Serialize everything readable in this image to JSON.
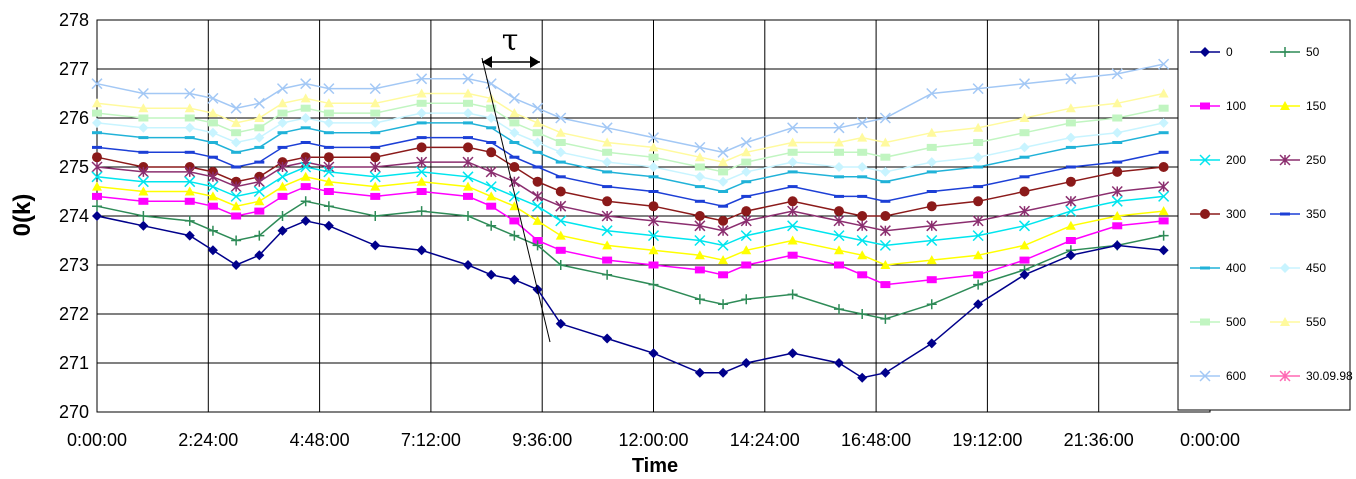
{
  "chart_data": {
    "type": "line",
    "title": "",
    "xlabel": "Time",
    "ylabel": "0(k)",
    "x_ticks": [
      "0:00:00",
      "2:24:00",
      "4:48:00",
      "7:12:00",
      "9:36:00",
      "12:00:00",
      "14:24:00",
      "16:48:00",
      "19:12:00",
      "21:36:00",
      "0:00:00"
    ],
    "xlim_hours": [
      0,
      24
    ],
    "ylim": [
      270,
      278
    ],
    "y_ticks": [
      270,
      271,
      272,
      273,
      274,
      275,
      276,
      277,
      278
    ],
    "grid": true,
    "legend_position": "right",
    "annotation": "τ",
    "sample_hours": [
      0,
      1,
      2,
      2.5,
      3,
      3.5,
      4,
      4.5,
      5,
      6,
      7,
      8,
      8.5,
      9,
      9.5,
      10,
      11,
      12,
      13,
      13.5,
      14,
      15,
      16,
      16.5,
      17,
      18,
      19,
      20,
      21,
      22,
      23
    ],
    "series": [
      {
        "name": "0",
        "color": "#00008b",
        "marker": "diamond",
        "values": [
          274.0,
          273.8,
          273.6,
          273.3,
          273.0,
          273.2,
          273.7,
          273.9,
          273.8,
          273.4,
          273.3,
          273.0,
          272.8,
          272.7,
          272.5,
          271.8,
          271.5,
          271.2,
          270.8,
          270.8,
          271.0,
          271.2,
          271.0,
          270.7,
          270.8,
          271.4,
          272.2,
          272.8,
          273.2,
          273.4,
          273.3
        ]
      },
      {
        "name": "50",
        "color": "#2e8b57",
        "marker": "plus",
        "values": [
          274.2,
          274.0,
          273.9,
          273.7,
          273.5,
          273.6,
          274.0,
          274.3,
          274.2,
          274.0,
          274.1,
          274.0,
          273.8,
          273.6,
          273.4,
          273.0,
          272.8,
          272.6,
          272.3,
          272.2,
          272.3,
          272.4,
          272.1,
          272.0,
          271.9,
          272.2,
          272.6,
          272.9,
          273.3,
          273.4,
          273.6
        ]
      },
      {
        "name": "100",
        "color": "#ff00ff",
        "marker": "square",
        "values": [
          274.4,
          274.3,
          274.3,
          274.2,
          274.0,
          274.1,
          274.4,
          274.6,
          274.5,
          274.4,
          274.5,
          274.4,
          274.2,
          273.9,
          273.5,
          273.3,
          273.1,
          273.0,
          272.9,
          272.8,
          273.0,
          273.2,
          273.0,
          272.8,
          272.6,
          272.7,
          272.8,
          273.1,
          273.5,
          273.8,
          273.9
        ]
      },
      {
        "name": "150",
        "color": "#ffff00",
        "marker": "triangle",
        "values": [
          274.6,
          274.5,
          274.5,
          274.4,
          274.2,
          274.3,
          274.6,
          274.8,
          274.7,
          274.6,
          274.7,
          274.6,
          274.4,
          274.2,
          273.9,
          273.6,
          273.4,
          273.3,
          273.2,
          273.1,
          273.3,
          273.5,
          273.3,
          273.2,
          273.0,
          273.1,
          273.2,
          273.4,
          273.8,
          274.0,
          274.1
        ]
      },
      {
        "name": "200",
        "color": "#00e5ee",
        "marker": "x",
        "values": [
          274.8,
          274.7,
          274.7,
          274.6,
          274.4,
          274.5,
          274.8,
          275.0,
          274.9,
          274.8,
          274.9,
          274.8,
          274.6,
          274.4,
          274.2,
          273.9,
          273.7,
          273.6,
          273.5,
          273.4,
          273.6,
          273.8,
          273.6,
          273.5,
          273.4,
          273.5,
          273.6,
          273.8,
          274.1,
          274.3,
          274.4
        ]
      },
      {
        "name": "250",
        "color": "#8b2e6f",
        "marker": "star",
        "values": [
          275.0,
          274.9,
          274.9,
          274.8,
          274.6,
          274.7,
          275.0,
          275.1,
          275.0,
          275.0,
          275.1,
          275.1,
          274.9,
          274.7,
          274.4,
          274.2,
          274.0,
          273.9,
          273.8,
          273.7,
          273.9,
          274.1,
          273.9,
          273.8,
          273.7,
          273.8,
          273.9,
          274.1,
          274.3,
          274.5,
          274.6
        ]
      },
      {
        "name": "300",
        "color": "#8b1a1a",
        "marker": "circle",
        "values": [
          275.2,
          275.0,
          275.0,
          274.9,
          274.7,
          274.8,
          275.1,
          275.2,
          275.2,
          275.2,
          275.4,
          275.4,
          275.3,
          275.0,
          274.7,
          274.5,
          274.3,
          274.2,
          274.0,
          273.9,
          274.1,
          274.3,
          274.1,
          274.0,
          274.0,
          274.2,
          274.3,
          274.5,
          274.7,
          274.9,
          275.0
        ]
      },
      {
        "name": "350",
        "color": "#1c3fd6",
        "marker": "dash",
        "values": [
          275.4,
          275.3,
          275.3,
          275.2,
          275.0,
          275.1,
          275.4,
          275.5,
          275.4,
          275.4,
          275.6,
          275.6,
          275.5,
          275.2,
          275.0,
          274.8,
          274.6,
          274.5,
          274.3,
          274.2,
          274.4,
          274.6,
          274.4,
          274.4,
          274.3,
          274.5,
          274.6,
          274.8,
          275.0,
          275.1,
          275.3
        ]
      },
      {
        "name": "400",
        "color": "#20b2d8",
        "marker": "dash",
        "values": [
          275.7,
          275.6,
          275.6,
          275.5,
          275.3,
          275.4,
          275.7,
          275.8,
          275.7,
          275.7,
          275.9,
          275.9,
          275.8,
          275.5,
          275.3,
          275.1,
          274.9,
          274.8,
          274.6,
          274.5,
          274.7,
          274.9,
          274.8,
          274.8,
          274.7,
          274.9,
          275.0,
          275.2,
          275.4,
          275.5,
          275.7
        ]
      },
      {
        "name": "450",
        "color": "#c8f4ff",
        "marker": "diamond",
        "values": [
          275.9,
          275.8,
          275.8,
          275.7,
          275.5,
          275.6,
          275.9,
          276.0,
          275.9,
          275.9,
          276.1,
          276.1,
          276.0,
          275.7,
          275.5,
          275.3,
          275.1,
          275.0,
          274.8,
          274.7,
          274.9,
          275.1,
          275.0,
          275.0,
          274.9,
          275.1,
          275.2,
          275.4,
          275.6,
          275.7,
          275.9
        ]
      },
      {
        "name": "500",
        "color": "#c1f5c1",
        "marker": "square",
        "values": [
          276.1,
          276.0,
          276.0,
          275.9,
          275.7,
          275.8,
          276.1,
          276.2,
          276.1,
          276.1,
          276.3,
          276.3,
          276.2,
          275.9,
          275.7,
          275.5,
          275.3,
          275.2,
          275.0,
          274.9,
          275.1,
          275.3,
          275.3,
          275.3,
          275.2,
          275.4,
          275.5,
          275.7,
          275.9,
          276.0,
          276.2
        ]
      },
      {
        "name": "550",
        "color": "#fffa9e",
        "marker": "triangle",
        "values": [
          276.3,
          276.2,
          276.2,
          276.1,
          275.9,
          276.0,
          276.3,
          276.4,
          276.3,
          276.3,
          276.5,
          276.5,
          276.4,
          276.1,
          275.9,
          275.7,
          275.5,
          275.4,
          275.2,
          275.1,
          275.3,
          275.5,
          275.5,
          275.6,
          275.5,
          275.7,
          275.8,
          276.0,
          276.2,
          276.3,
          276.5
        ]
      },
      {
        "name": "600",
        "color": "#a3c8f5",
        "marker": "x",
        "values": [
          276.7,
          276.5,
          276.5,
          276.4,
          276.2,
          276.3,
          276.6,
          276.7,
          276.6,
          276.6,
          276.8,
          276.8,
          276.7,
          276.4,
          276.2,
          276.0,
          275.8,
          275.6,
          275.4,
          275.3,
          275.5,
          275.8,
          275.8,
          275.9,
          276.0,
          276.5,
          276.6,
          276.7,
          276.8,
          276.9,
          277.1
        ]
      },
      {
        "name": "30.09.98",
        "color": "#ff69b4",
        "marker": "star",
        "values": []
      }
    ]
  }
}
